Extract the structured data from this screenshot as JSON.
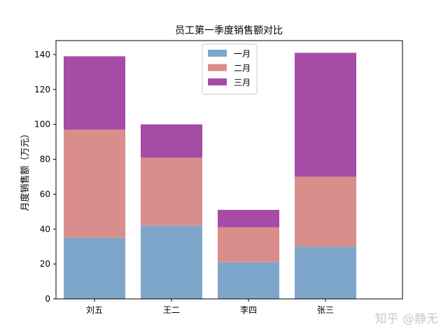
{
  "chart_data": {
    "type": "bar",
    "stacked": true,
    "title": "员工第一季度销售额对比",
    "xlabel": "",
    "ylabel": "月度销售额（万元）",
    "categories": [
      "刘五",
      "王二",
      "李四",
      "张三"
    ],
    "series": [
      {
        "name": "一月",
        "values": [
          35,
          42,
          21,
          30
        ],
        "color": "#7ea6cb"
      },
      {
        "name": "二月",
        "values": [
          62,
          39,
          20,
          40
        ],
        "color": "#da8e8b"
      },
      {
        "name": "三月",
        "values": [
          42,
          19,
          10,
          71
        ],
        "color": "#a64ca6"
      }
    ],
    "ylim": [
      0,
      148
    ],
    "yticks": [
      0,
      20,
      40,
      60,
      80,
      100,
      120,
      140
    ],
    "grid": false,
    "legend": "upper-center"
  },
  "watermark": "知乎 @静无"
}
